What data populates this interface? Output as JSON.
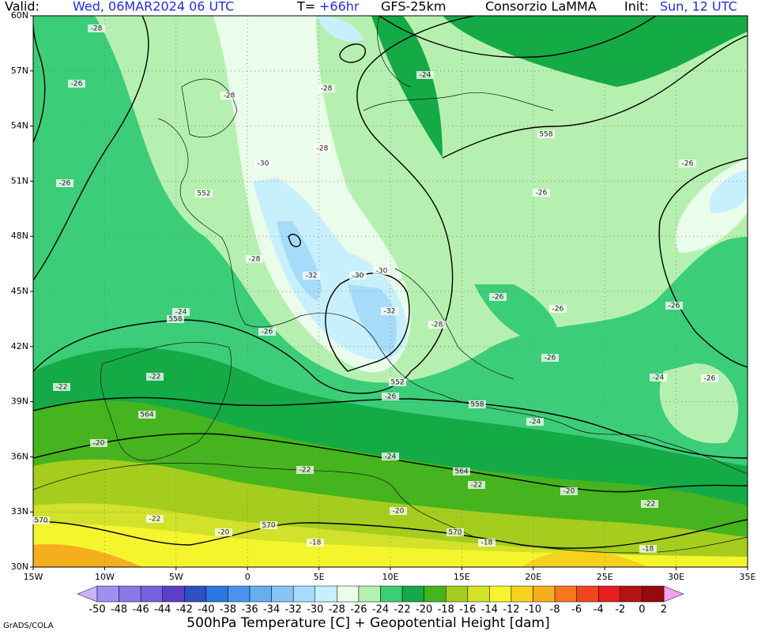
{
  "header": {
    "valid_label": "Valid:",
    "valid_time": "Wed, 06MAR2024 06 UTC",
    "lead_label": "T=",
    "lead_time": "+66hr",
    "model": "GFS-25km",
    "producer": "Consorzio LaMMA",
    "init_label": "Init:",
    "init_time": "Sun, 12 UTC"
  },
  "map": {
    "lon_labels": [
      "15W",
      "10W",
      "5W",
      "0",
      "5E",
      "10E",
      "15E",
      "20E",
      "25E",
      "30E",
      "35E"
    ],
    "lat_labels": [
      "60N",
      "57N",
      "54N",
      "51N",
      "48N",
      "45N",
      "42N",
      "39N",
      "36N",
      "33N",
      "30N"
    ],
    "temperature_labels": [
      -28,
      -26,
      -28,
      -28,
      -24,
      -26,
      -30,
      -28,
      -26,
      -26,
      -28,
      -32,
      -30,
      -30,
      -32,
      -24,
      -26,
      -28,
      -26,
      -26,
      -26,
      -26,
      -22,
      -22,
      -26,
      -24,
      -26,
      -24,
      -20,
      -24,
      -22,
      -22,
      -20,
      -22,
      -22,
      -20,
      -20,
      -18,
      -18,
      -18
    ],
    "height_labels": [
      558,
      552,
      558,
      564,
      552,
      558,
      564,
      570,
      570,
      570
    ]
  },
  "colorbar": {
    "ticks": [
      -50,
      -48,
      -46,
      -44,
      -42,
      -40,
      -38,
      -36,
      -34,
      -32,
      -30,
      -28,
      -26,
      -24,
      -22,
      -20,
      -18,
      -16,
      -14,
      -12,
      -10,
      -8,
      -6,
      -4,
      -2,
      0,
      2
    ],
    "colors": [
      "#9f8ff2",
      "#8a78e8",
      "#7662dc",
      "#5a3fc8",
      "#2f4fc2",
      "#2a78e0",
      "#4a94ec",
      "#66aef2",
      "#86c6f6",
      "#a6dcfa",
      "#c8f0fc",
      "#eafcea",
      "#b6f0b0",
      "#3ccd78",
      "#14aa46",
      "#46b41e",
      "#a5cd1e",
      "#d2e12a",
      "#f5f52d",
      "#f5d21e",
      "#f5af1e",
      "#f5781e",
      "#f0461e",
      "#e61e1e",
      "#b41414",
      "#960a0a"
    ],
    "low_color": "#c8b4fa",
    "high_color": "#f5a0f0",
    "caption": "500hPa Temperature [C] + Geopotential Height [dam]"
  },
  "footer": {
    "credit": "GrADS/COLA"
  }
}
